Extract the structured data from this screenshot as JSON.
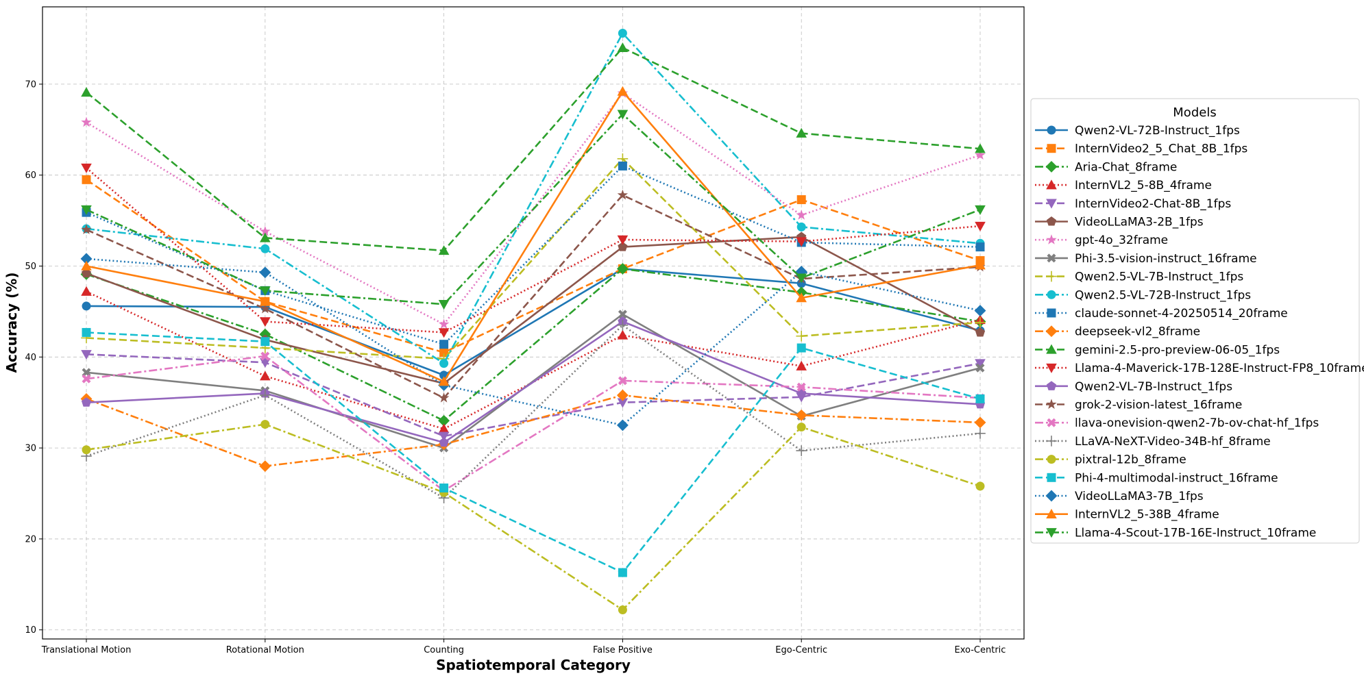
{
  "chart_data": {
    "type": "line",
    "title": "",
    "xlabel": "Spatiotemporal Category",
    "ylabel": "Accuracy (%)",
    "categories": [
      "Translational Motion",
      "Rotational Motion",
      "Counting",
      "False Positive",
      "Ego-Centric",
      "Exo-Centric"
    ],
    "ylim": [
      9,
      78.5
    ],
    "yticks": [
      10,
      20,
      30,
      40,
      50,
      60,
      70
    ],
    "grid": true,
    "legend_title": "Models",
    "legend_position": "right",
    "series": [
      {
        "name": "Qwen2-VL-72B-Instruct_1fps",
        "values": [
          45.6,
          45.5,
          38.0,
          49.7,
          48.1,
          42.9
        ],
        "color": "#1f77b4",
        "dash": "solid",
        "marker": "circle"
      },
      {
        "name": "InternVideo2_5_Chat_8B_1fps",
        "values": [
          59.5,
          46.1,
          40.5,
          49.7,
          57.3,
          50.6
        ],
        "color": "#ff7f0e",
        "dash": "dashed",
        "marker": "square"
      },
      {
        "name": "Aria-Chat_8frame",
        "values": [
          49.1,
          42.5,
          33.0,
          49.7,
          47.1,
          43.9
        ],
        "color": "#2ca02c",
        "dash": "dashdot",
        "marker": "diamond"
      },
      {
        "name": "InternVL2_5-8B_4frame",
        "values": [
          47.2,
          37.9,
          32.1,
          42.4,
          39.0,
          44.1
        ],
        "color": "#d62728",
        "dash": "dotted",
        "marker": "triangle-up"
      },
      {
        "name": "InternVideo2-Chat-8B_1fps",
        "values": [
          40.3,
          39.4,
          31.3,
          35.0,
          35.6,
          39.3
        ],
        "color": "#9467bd",
        "dash": "dashed",
        "marker": "triangle-down"
      },
      {
        "name": "VideoLLaMA3-2B_1fps",
        "values": [
          49.2,
          41.9,
          37.1,
          52.1,
          53.2,
          42.7
        ],
        "color": "#8c564b",
        "dash": "solid",
        "marker": "pentagon"
      },
      {
        "name": "gpt-4o_32frame",
        "values": [
          65.8,
          53.8,
          43.6,
          69.0,
          55.6,
          62.2
        ],
        "color": "#e377c2",
        "dash": "dotted",
        "marker": "star"
      },
      {
        "name": "Phi-3.5-vision-instruct_16frame",
        "values": [
          38.3,
          36.3,
          30.0,
          44.7,
          33.5,
          38.8
        ],
        "color": "#7f7f7f",
        "dash": "solid",
        "marker": "x"
      },
      {
        "name": "Qwen2.5-VL-7B-Instruct_1fps",
        "values": [
          42.1,
          41.0,
          39.8,
          61.8,
          42.3,
          43.8
        ],
        "color": "#bcbd22",
        "dash": "dashed",
        "marker": "plus"
      },
      {
        "name": "Qwen2.5-VL-72B-Instruct_1fps",
        "values": [
          54.1,
          51.9,
          39.3,
          75.6,
          54.3,
          52.5
        ],
        "color": "#17becf",
        "dash": "dashdot",
        "marker": "circle"
      },
      {
        "name": "claude-sonnet-4-20250514_20frame",
        "values": [
          55.9,
          47.3,
          41.4,
          61.0,
          52.6,
          52.1
        ],
        "color": "#1f77b4",
        "dash": "dotted",
        "marker": "square"
      },
      {
        "name": "deepseek-vl2_8frame",
        "values": [
          35.4,
          28.0,
          30.4,
          35.8,
          33.6,
          32.8
        ],
        "color": "#ff7f0e",
        "dash": "dashdot",
        "marker": "diamond"
      },
      {
        "name": "gemini-2.5-pro-preview-06-05_1fps",
        "values": [
          69.1,
          53.1,
          51.7,
          74.0,
          64.6,
          62.9
        ],
        "color": "#2ca02c",
        "dash": "dashed",
        "marker": "triangle-up"
      },
      {
        "name": "Llama-4-Maverick-17B-128E-Instruct-FP8_10frame",
        "values": [
          60.8,
          43.9,
          42.7,
          52.9,
          52.7,
          54.4
        ],
        "color": "#d62728",
        "dash": "dotted",
        "marker": "triangle-down"
      },
      {
        "name": "Qwen2-VL-7B-Instruct_1fps",
        "values": [
          35.0,
          36.0,
          30.6,
          43.9,
          36.0,
          34.8
        ],
        "color": "#9467bd",
        "dash": "solid",
        "marker": "pentagon"
      },
      {
        "name": "grok-2-vision-latest_16frame",
        "values": [
          54.0,
          45.3,
          35.5,
          57.8,
          48.6,
          49.9
        ],
        "color": "#8c564b",
        "dash": "dashed",
        "marker": "star"
      },
      {
        "name": "llava-onevision-qwen2-7b-ov-chat-hf_1fps",
        "values": [
          37.6,
          40.1,
          25.3,
          37.4,
          36.7,
          35.5
        ],
        "color": "#e377c2",
        "dash": "dashdot",
        "marker": "x"
      },
      {
        "name": "LLaVA-NeXT-Video-34B-hf_8frame",
        "values": [
          29.1,
          35.8,
          24.5,
          43.5,
          29.7,
          31.6
        ],
        "color": "#7f7f7f",
        "dash": "dotted",
        "marker": "plus"
      },
      {
        "name": "pixtral-12b_8frame",
        "values": [
          29.8,
          32.6,
          25.1,
          12.2,
          32.3,
          25.8
        ],
        "color": "#bcbd22",
        "dash": "dashdot",
        "marker": "circle"
      },
      {
        "name": "Phi-4-multimodal-instruct_16frame",
        "values": [
          42.7,
          41.7,
          25.6,
          16.3,
          41.0,
          35.4
        ],
        "color": "#17becf",
        "dash": "dashed",
        "marker": "square"
      },
      {
        "name": "VideoLLaMA3-7B_1fps",
        "values": [
          50.8,
          49.3,
          36.9,
          32.5,
          49.4,
          45.1
        ],
        "color": "#1f77b4",
        "dash": "dotted",
        "marker": "diamond"
      },
      {
        "name": "InternVL2_5-38B_4frame",
        "values": [
          50.0,
          46.1,
          37.3,
          69.2,
          46.5,
          50.1
        ],
        "color": "#ff7f0e",
        "dash": "solid",
        "marker": "triangle-up"
      },
      {
        "name": "Llama-4-Scout-17B-16E-Instruct_10frame",
        "values": [
          56.2,
          47.3,
          45.8,
          66.7,
          48.7,
          56.2
        ],
        "color": "#2ca02c",
        "dash": "dashdot",
        "marker": "triangle-down"
      }
    ]
  }
}
